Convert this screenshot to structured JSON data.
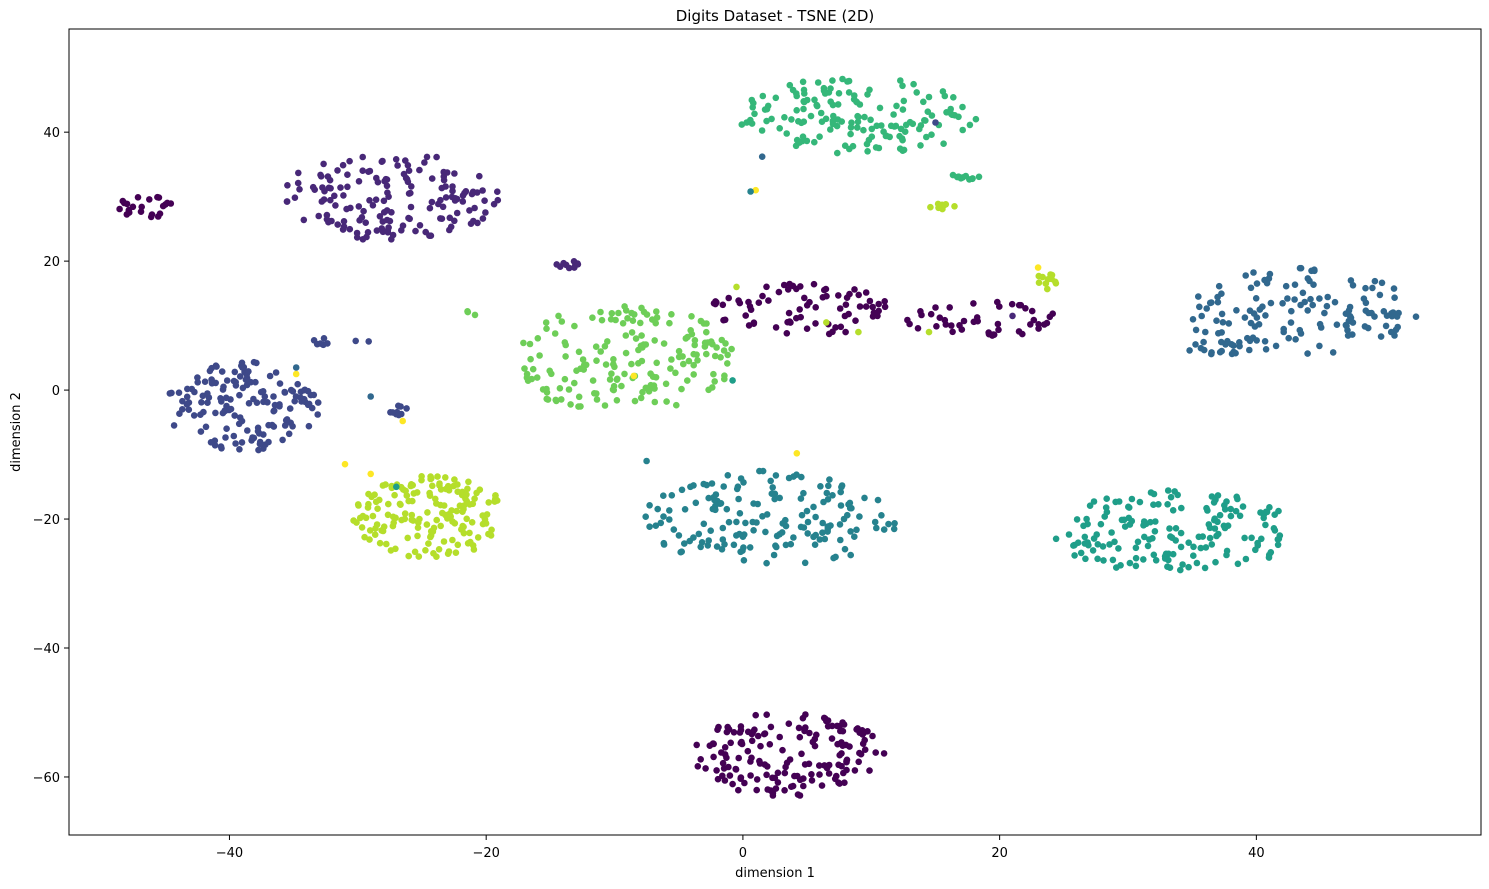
{
  "chart_data": {
    "type": "scatter",
    "title": "Digits Dataset - TSNE (2D)",
    "xlabel": "dimension 1",
    "ylabel": "dimension 2",
    "xlim": [
      -52.5,
      57.5
    ],
    "ylim": [
      -69,
      56
    ],
    "xticks": [
      -40,
      -20,
      0,
      20,
      40
    ],
    "yticks": [
      -60,
      -40,
      -20,
      0,
      20,
      40
    ],
    "xtick_labels": [
      "−40",
      "−20",
      "0",
      "20",
      "40"
    ],
    "ytick_labels": [
      "−60",
      "−40",
      "−20",
      "0",
      "20",
      "40"
    ],
    "grid": false,
    "legend": "none",
    "colors": [
      "#440154",
      "#482878",
      "#3e4989",
      "#31688e",
      "#26828e",
      "#1f9e89",
      "#35b779",
      "#6ece58",
      "#b5de2b",
      "#fde725"
    ],
    "series": [
      {
        "clusters": [
          {
            "cx": 3.5,
            "cy": -56.5,
            "rx": 7.5,
            "ry": 6.5,
            "n": 165
          },
          {
            "cx": -46.5,
            "cy": 28.5,
            "rx": 2.2,
            "ry": 1.8,
            "n": 22
          },
          {
            "cx": 4.5,
            "cy": 12.5,
            "rx": 7,
            "ry": 4,
            "n": 75
          },
          {
            "cx": 18.5,
            "cy": 11,
            "rx": 6,
            "ry": 2.8,
            "n": 45
          }
        ]
      },
      {
        "clusters": [
          {
            "cx": -27.5,
            "cy": 30,
            "rx": 8.5,
            "ry": 7,
            "n": 160
          },
          {
            "cx": -13.8,
            "cy": 19.5,
            "rx": 1.8,
            "ry": 0.6,
            "n": 10
          }
        ]
      },
      {
        "clusters": [
          {
            "cx": -39,
            "cy": -2.5,
            "rx": 6,
            "ry": 7,
            "n": 150
          },
          {
            "cx": -31.5,
            "cy": 7.5,
            "rx": 2.5,
            "ry": 0.8,
            "n": 8
          },
          {
            "cx": -26.5,
            "cy": -3.2,
            "rx": 1.2,
            "ry": 0.8,
            "n": 10
          }
        ]
      },
      {
        "clusters": [
          {
            "cx": 43.5,
            "cy": 12,
            "rx": 9,
            "ry": 7,
            "n": 130
          },
          {
            "cx": 37,
            "cy": 6.5,
            "rx": 2.8,
            "ry": 1.3,
            "n": 18
          }
        ]
      },
      {
        "clusters": [
          {
            "cx": 2,
            "cy": -20,
            "rx": 10,
            "ry": 7.5,
            "n": 165
          }
        ]
      },
      {
        "clusters": [
          {
            "cx": 33.5,
            "cy": -22,
            "rx": 9.5,
            "ry": 6.5,
            "n": 165
          }
        ]
      },
      {
        "clusters": [
          {
            "cx": 9,
            "cy": 42.5,
            "rx": 9.5,
            "ry": 6,
            "n": 155
          },
          {
            "cx": 17,
            "cy": 33,
            "rx": 1.5,
            "ry": 0.4,
            "n": 10
          }
        ]
      },
      {
        "clusters": [
          {
            "cx": -9.5,
            "cy": 5,
            "rx": 9,
            "ry": 8.5,
            "n": 175
          },
          {
            "cx": -21,
            "cy": 12,
            "rx": 0.6,
            "ry": 0.4,
            "n": 3
          }
        ]
      },
      {
        "clusters": [
          {
            "cx": -24.5,
            "cy": -19.5,
            "rx": 6,
            "ry": 6.5,
            "n": 165
          },
          {
            "cx": 15.5,
            "cy": 28.5,
            "rx": 1,
            "ry": 0.6,
            "n": 8
          },
          {
            "cx": 23.8,
            "cy": 17,
            "rx": 1.1,
            "ry": 1.4,
            "n": 12
          }
        ]
      }
    ],
    "points": [
      {
        "x": -27,
        "y": -15,
        "c": 5
      },
      {
        "x": 1,
        "y": 31,
        "c": 9
      },
      {
        "x": 0.6,
        "y": 30.8,
        "c": 4
      },
      {
        "x": 1.5,
        "y": 36.2,
        "c": 3
      },
      {
        "x": 15,
        "y": 41.5,
        "c": 2
      },
      {
        "x": -7.5,
        "y": -11,
        "c": 4
      },
      {
        "x": -29,
        "y": -1,
        "c": 3
      },
      {
        "x": 4.2,
        "y": -9.8,
        "c": 9
      },
      {
        "x": -26.5,
        "y": -4.8,
        "c": 9
      },
      {
        "x": -34.8,
        "y": 2.5,
        "c": 9
      },
      {
        "x": -34.8,
        "y": 3.5,
        "c": 3
      },
      {
        "x": -0.8,
        "y": 1.5,
        "c": 5
      },
      {
        "x": -0.5,
        "y": 16,
        "c": 8
      },
      {
        "x": -8.5,
        "y": 2.2,
        "c": 9
      },
      {
        "x": 9,
        "y": 9,
        "c": 8
      },
      {
        "x": 14.5,
        "y": 9,
        "c": 8
      },
      {
        "x": 8,
        "y": 9,
        "c": 0
      },
      {
        "x": 6.5,
        "y": 10.5,
        "c": 8
      },
      {
        "x": 21,
        "y": 11.5,
        "c": 1
      },
      {
        "x": -31,
        "y": -11.5,
        "c": 9
      },
      {
        "x": -29,
        "y": -13,
        "c": 9
      },
      {
        "x": 23,
        "y": 19,
        "c": 9
      }
    ]
  }
}
